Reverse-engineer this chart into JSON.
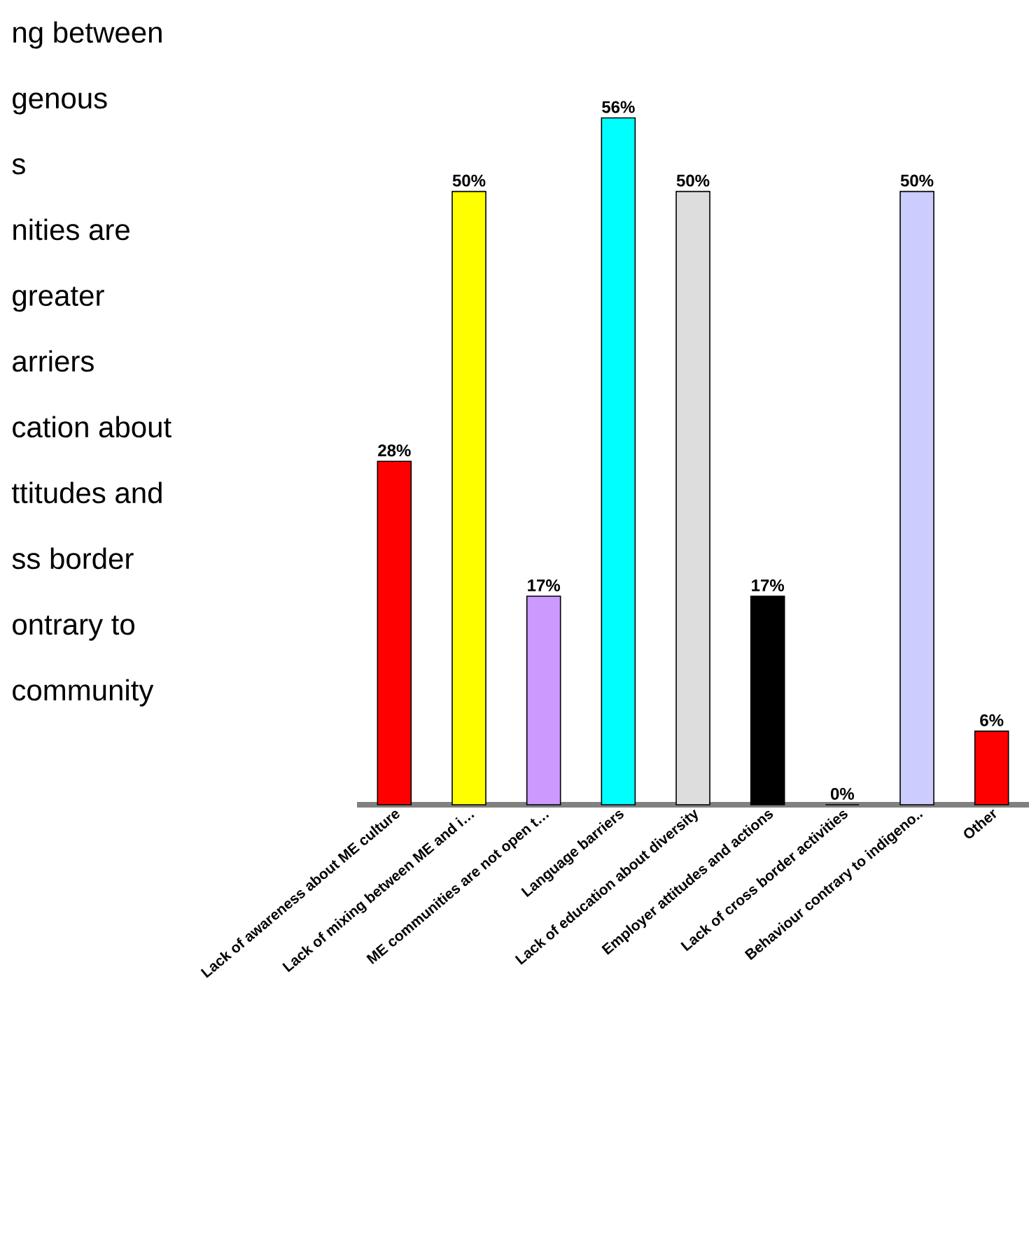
{
  "chart_data": {
    "type": "bar",
    "categories": [
      "Lack of awareness about ME culture",
      "Lack of mixing between ME and i…",
      "ME communities are not open t…",
      "Language barriers",
      "Lack of education about diversity",
      "Employer attitudes and actions",
      "Lack of cross border activities",
      "Behaviour contrary to indigeno..",
      "Other"
    ],
    "values": [
      28,
      50,
      17,
      56,
      50,
      17,
      0,
      50,
      6
    ],
    "colors": [
      "#ff0000",
      "#ffff00",
      "#cc99ff",
      "#00ffff",
      "#dddddd",
      "#000000",
      "#0066cc",
      "#ccccff",
      "#ff0000"
    ],
    "value_labels": [
      "28%",
      "50%",
      "17%",
      "56%",
      "50%",
      "17%",
      "0%",
      "50%",
      "6%"
    ],
    "annotations": [
      "ng between",
      "genous",
      "s",
      "nities are",
      "greater",
      "arriers",
      "cation about",
      "ttitudes and",
      "ss border",
      "ontrary to",
      "community"
    ]
  }
}
